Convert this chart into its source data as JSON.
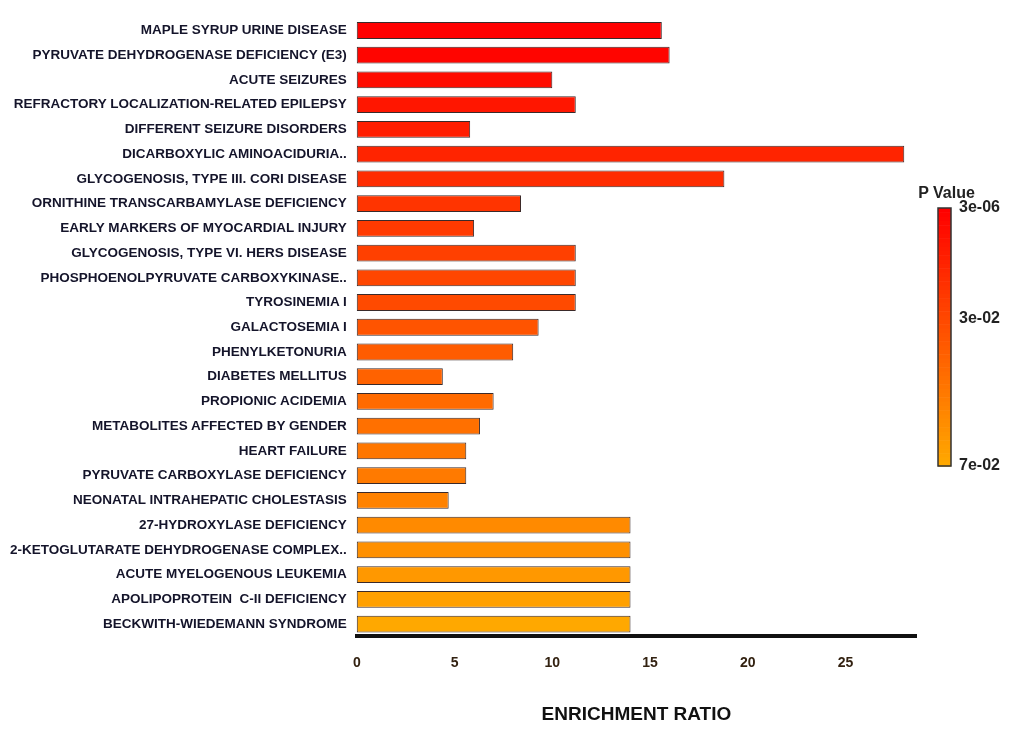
{
  "chart_data": {
    "type": "bar",
    "orientation": "horizontal",
    "xlabel": "ENRICHMENT RATIO",
    "clabel": "P Value",
    "categories": [
      "MAPLE SYRUP URINE DISEASE",
      "PYRUVATE DEHYDROGENASE DEFICIENCY (E3)",
      "ACUTE SEIZURES",
      "REFRACTORY LOCALIZATION-RELATED EPILEPSY",
      "DIFFERENT SEIZURE DISORDERS",
      "DICARBOXYLIC AMINOACIDURIA..",
      "GLYCOGENOSIS, TYPE III. CORI DISEASE",
      "ORNITHINE TRANSCARBAMYLASE DEFICIENCY",
      "EARLY MARKERS OF MYOCARDIAL INJURY",
      "GLYCOGENOSIS, TYPE VI. HERS DISEASE",
      "PHOSPHOENOLPYRUVATE CARBOXYKINASE..",
      "TYROSINEMIA I",
      "GALACTOSEMIA I",
      "PHENYLKETONURIA",
      "DIABETES MELLITUS",
      "PROPIONIC ACIDEMIA",
      "METABOLITES AFFECTED BY GENDER",
      "HEART FAILURE",
      "PYRUVATE CARBOXYLASE DEFICIENCY",
      "NEONATAL INTRAHEPATIC CHOLESTASIS",
      "27-HYDROXYLASE DEFICIENCY",
      "2-KETOGLUTARATE DEHYDROGENASE COMPLEX..",
      "ACUTE MYELOGENOUS LEUKEMIA",
      "APOLIPOPROTEIN  C-II DEFICIENCY",
      "BECKWITH-WIEDEMANN SYNDROME"
    ],
    "values": [
      15.6,
      16.0,
      10.0,
      11.2,
      5.8,
      28.0,
      18.8,
      8.4,
      6.0,
      11.2,
      11.2,
      11.2,
      9.3,
      8.0,
      4.4,
      7.0,
      6.3,
      5.6,
      5.6,
      4.7,
      14.0,
      14.0,
      14.0,
      14.0,
      14.0
    ],
    "colors": [
      "#ff0000",
      "#ff0500",
      "#ff0c00",
      "#ff1600",
      "#ff1e00",
      "#ff2400",
      "#ff2c00",
      "#ff3400",
      "#ff3a00",
      "#ff4000",
      "#ff4600",
      "#ff4a00",
      "#ff5400",
      "#ff5c00",
      "#ff6200",
      "#ff6a00",
      "#ff7000",
      "#ff7600",
      "#ff7a00",
      "#ff8200",
      "#ff8a00",
      "#ff9000",
      "#ff9800",
      "#ffa000",
      "#ffa800"
    ],
    "xlim": [
      0,
      28.6
    ],
    "xticks": [
      0,
      5,
      10,
      15,
      20,
      25
    ],
    "clim": [
      3e-06,
      0.07
    ],
    "cticks": [
      {
        "value": 3e-06,
        "label": "3e-06"
      },
      {
        "value": 0.03,
        "label": "3e-02"
      },
      {
        "value": 0.07,
        "label": "7e-02"
      }
    ],
    "grid": false,
    "legend": false
  }
}
